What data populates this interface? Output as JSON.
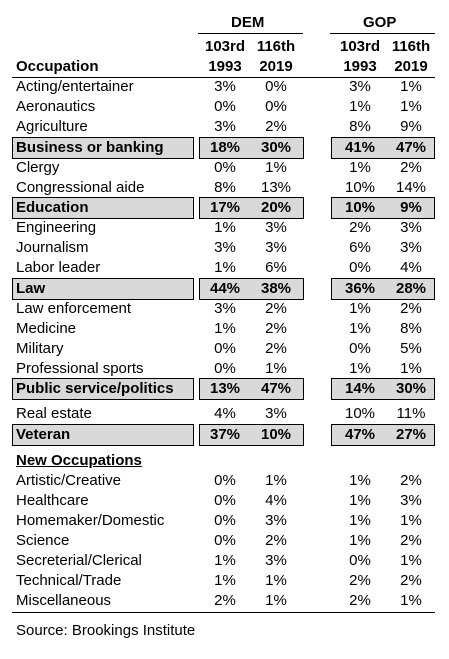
{
  "header": {
    "dem": "DEM",
    "gop": "GOP",
    "occupation": "Occupation",
    "congress_1993": "103rd",
    "year_1993": "1993",
    "congress_2019": "116th",
    "year_2019": "2019"
  },
  "rows": [
    {
      "occupation": "Acting/entertainer",
      "dem_1993": "3%",
      "dem_2019": "0%",
      "gop_1993": "3%",
      "gop_2019": "1%"
    },
    {
      "occupation": "Aeronautics",
      "dem_1993": "0%",
      "dem_2019": "0%",
      "gop_1993": "1%",
      "gop_2019": "1%"
    },
    {
      "occupation": "Agriculture",
      "dem_1993": "3%",
      "dem_2019": "2%",
      "gop_1993": "8%",
      "gop_2019": "9%"
    },
    {
      "occupation": "Business or banking",
      "dem_1993": "18%",
      "dem_2019": "30%",
      "gop_1993": "41%",
      "gop_2019": "47%"
    },
    {
      "occupation": "Clergy",
      "dem_1993": "0%",
      "dem_2019": "1%",
      "gop_1993": "1%",
      "gop_2019": "2%"
    },
    {
      "occupation": "Congressional aide",
      "dem_1993": "8%",
      "dem_2019": "13%",
      "gop_1993": "10%",
      "gop_2019": "14%"
    },
    {
      "occupation": "Education",
      "dem_1993": "17%",
      "dem_2019": "20%",
      "gop_1993": "10%",
      "gop_2019": "9%"
    },
    {
      "occupation": "Engineering",
      "dem_1993": "1%",
      "dem_2019": "3%",
      "gop_1993": "2%",
      "gop_2019": "3%"
    },
    {
      "occupation": "Journalism",
      "dem_1993": "3%",
      "dem_2019": "3%",
      "gop_1993": "6%",
      "gop_2019": "3%"
    },
    {
      "occupation": "Labor leader",
      "dem_1993": "1%",
      "dem_2019": "6%",
      "gop_1993": "0%",
      "gop_2019": "4%"
    },
    {
      "occupation": "Law",
      "dem_1993": "44%",
      "dem_2019": "38%",
      "gop_1993": "36%",
      "gop_2019": "28%"
    },
    {
      "occupation": "Law enforcement",
      "dem_1993": "3%",
      "dem_2019": "2%",
      "gop_1993": "1%",
      "gop_2019": "2%"
    },
    {
      "occupation": "Medicine",
      "dem_1993": "1%",
      "dem_2019": "2%",
      "gop_1993": "1%",
      "gop_2019": "8%"
    },
    {
      "occupation": "Military",
      "dem_1993": "0%",
      "dem_2019": "2%",
      "gop_1993": "0%",
      "gop_2019": "5%"
    },
    {
      "occupation": "Professional sports",
      "dem_1993": "0%",
      "dem_2019": "1%",
      "gop_1993": "1%",
      "gop_2019": "1%"
    },
    {
      "occupation": "Public service/politics",
      "dem_1993": "13%",
      "dem_2019": "47%",
      "gop_1993": "14%",
      "gop_2019": "30%"
    },
    {
      "occupation": "Real estate",
      "dem_1993": "4%",
      "dem_2019": "3%",
      "gop_1993": "10%",
      "gop_2019": "11%"
    },
    {
      "occupation": "Veteran",
      "dem_1993": "37%",
      "dem_2019": "10%",
      "gop_1993": "47%",
      "gop_2019": "27%"
    }
  ],
  "new_occupations_heading": "New Occupations",
  "new_rows": [
    {
      "occupation": "Artistic/Creative",
      "dem_1993": "0%",
      "dem_2019": "1%",
      "gop_1993": "1%",
      "gop_2019": "2%"
    },
    {
      "occupation": "Healthcare",
      "dem_1993": "0%",
      "dem_2019": "4%",
      "gop_1993": "1%",
      "gop_2019": "3%"
    },
    {
      "occupation": "Homemaker/Domestic",
      "dem_1993": "0%",
      "dem_2019": "3%",
      "gop_1993": "1%",
      "gop_2019": "1%"
    },
    {
      "occupation": "Science",
      "dem_1993": "0%",
      "dem_2019": "2%",
      "gop_1993": "1%",
      "gop_2019": "2%"
    },
    {
      "occupation": "Secreterial/Clerical",
      "dem_1993": "1%",
      "dem_2019": "3%",
      "gop_1993": "0%",
      "gop_2019": "1%"
    },
    {
      "occupation": "Technical/Trade",
      "dem_1993": "1%",
      "dem_2019": "1%",
      "gop_1993": "2%",
      "gop_2019": "2%"
    },
    {
      "occupation": "Miscellaneous",
      "dem_1993": "2%",
      "dem_2019": "1%",
      "gop_1993": "2%",
      "gop_2019": "1%"
    }
  ],
  "source": "Source: Brookings Institute"
}
